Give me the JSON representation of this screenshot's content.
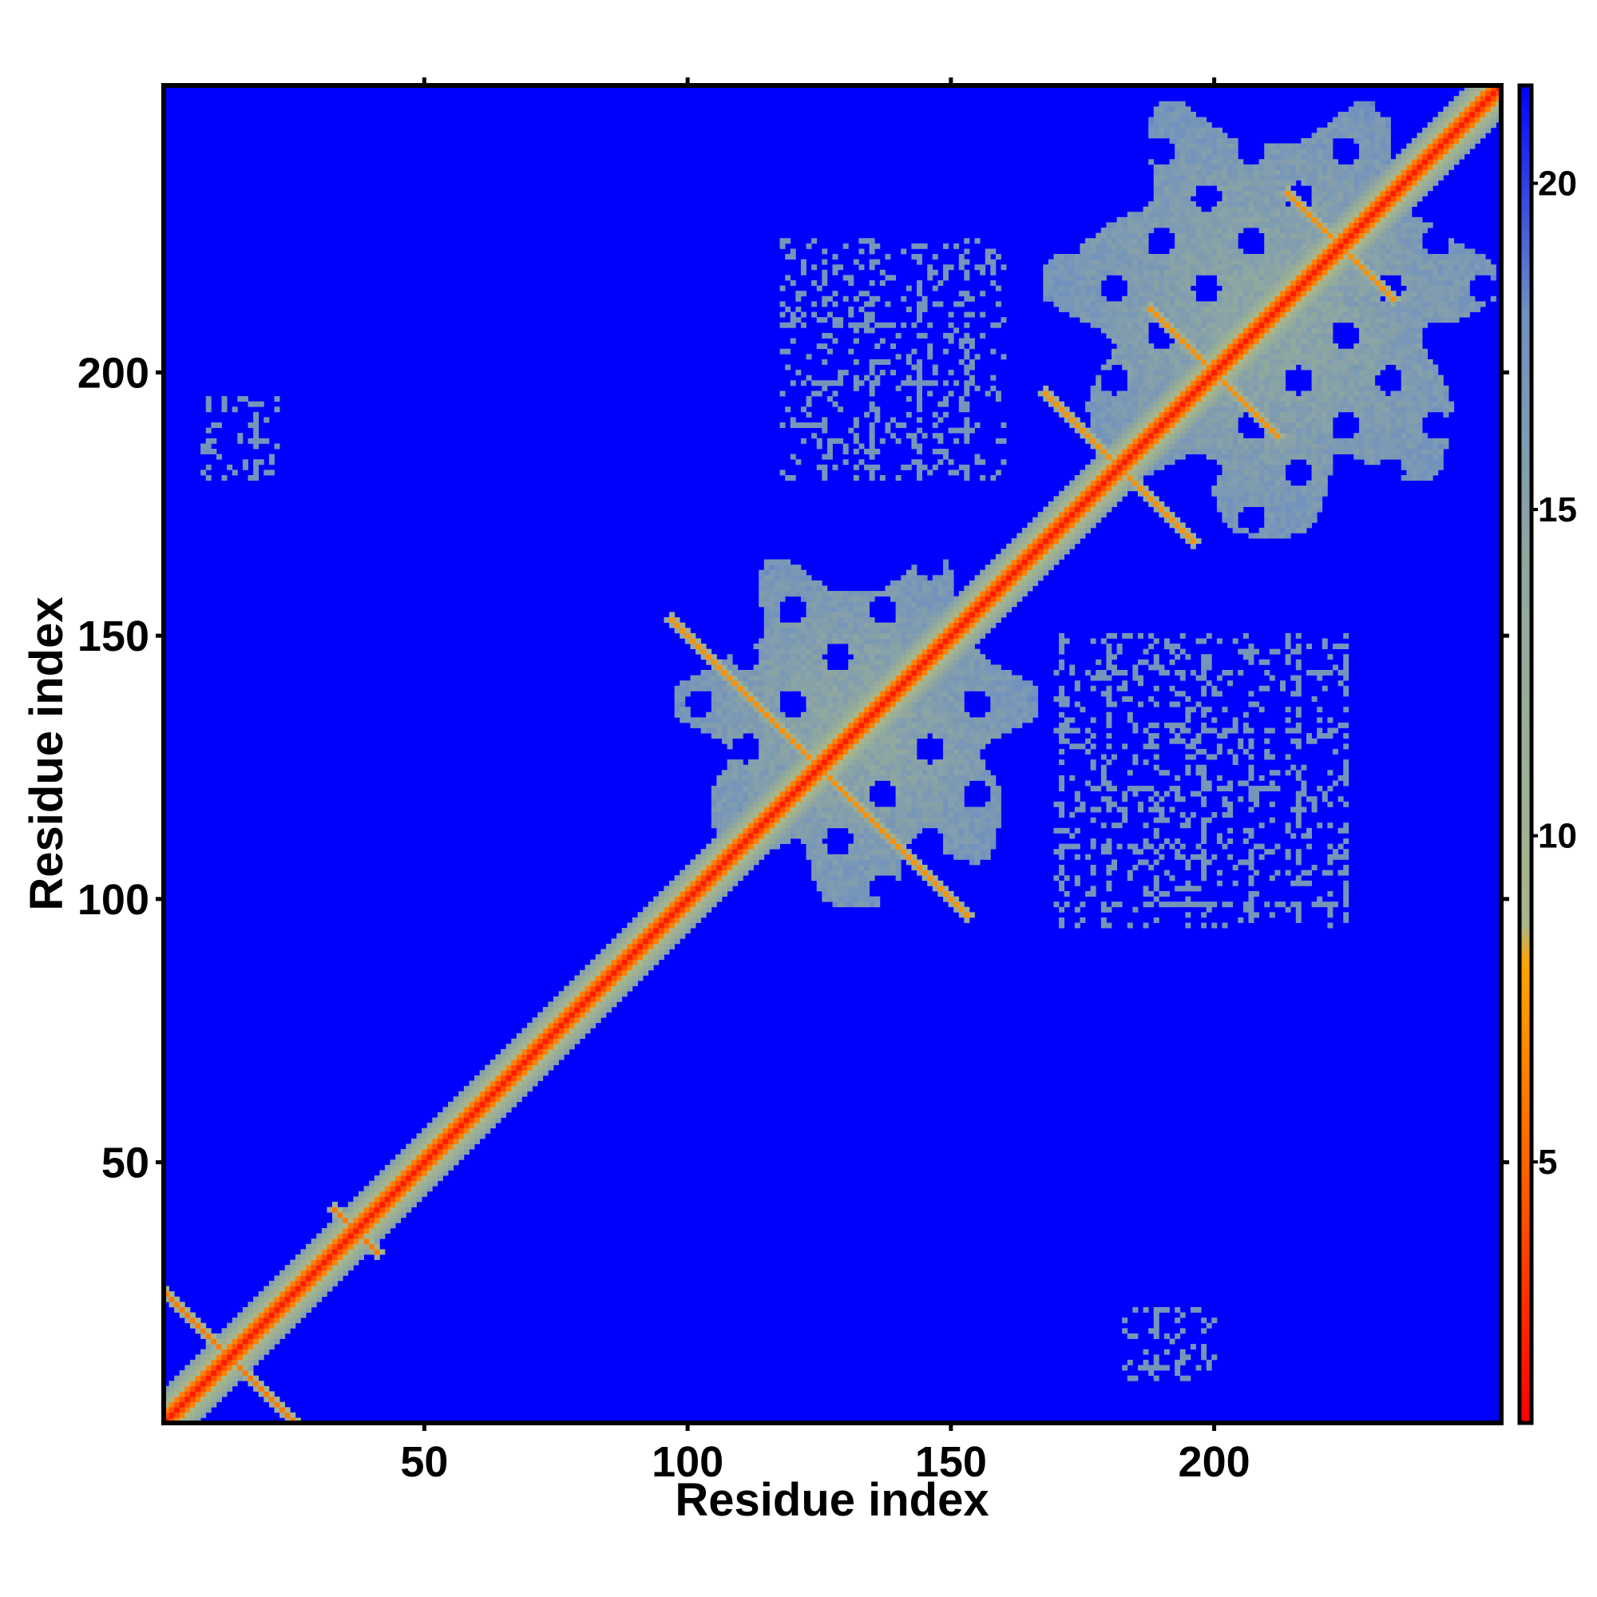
{
  "chart_data": {
    "type": "heatmap",
    "title": "",
    "xlabel": "Residue index",
    "ylabel": "Residue index",
    "xlim": [
      1,
      254
    ],
    "ylim": [
      1,
      254
    ],
    "xticks": [
      50,
      100,
      150,
      200
    ],
    "yticks": [
      50,
      100,
      150,
      200
    ],
    "colorbar": {
      "range": [
        1,
        21.5
      ],
      "ticks": [
        5,
        10,
        15,
        20
      ],
      "stops": [
        {
          "value": 1,
          "color": "#ff0000"
        },
        {
          "value": 4.5,
          "color": "#ff5a00"
        },
        {
          "value": 8,
          "color": "#ffa500"
        },
        {
          "value": 8.6,
          "color": "#a8b68c"
        },
        {
          "value": 14,
          "color": "#90a8a0"
        },
        {
          "value": 18,
          "color": "#7090c0"
        },
        {
          "value": 21.5,
          "color": "#0000ff"
        }
      ]
    },
    "background_value": 21.5,
    "diagonal": {
      "from": 1,
      "to": 254,
      "core_value": 2,
      "halfwidth_residues": 6
    },
    "domains": [
      {
        "range": [
          98,
          166
        ],
        "value": 16
      },
      {
        "range": [
          168,
          253
        ],
        "value": 16
      }
    ],
    "cross_contacts": [
      {
        "center": [
          13,
          13
        ],
        "length": 12,
        "value": 6
      },
      {
        "center": [
          37,
          37
        ],
        "length": 4,
        "value": 6
      },
      {
        "center": [
          125,
          125
        ],
        "length": 28,
        "value": 7
      },
      {
        "center": [
          182,
          182
        ],
        "length": 14,
        "value": 7
      },
      {
        "center": [
          200,
          200
        ],
        "length": 12,
        "value": 7
      },
      {
        "center": [
          224,
          224
        ],
        "length": 10,
        "value": 7
      }
    ],
    "sparse_regions": [
      {
        "x": [
          118,
          160
        ],
        "y": [
          180,
          225
        ],
        "value": 17
      },
      {
        "x": [
          170,
          225
        ],
        "y": [
          95,
          150
        ],
        "value": 17
      },
      {
        "x": [
          8,
          22
        ],
        "y": [
          180,
          195
        ],
        "value": 17
      },
      {
        "x": [
          183,
          200
        ],
        "y": [
          9,
          22
        ],
        "value": 17
      }
    ]
  }
}
